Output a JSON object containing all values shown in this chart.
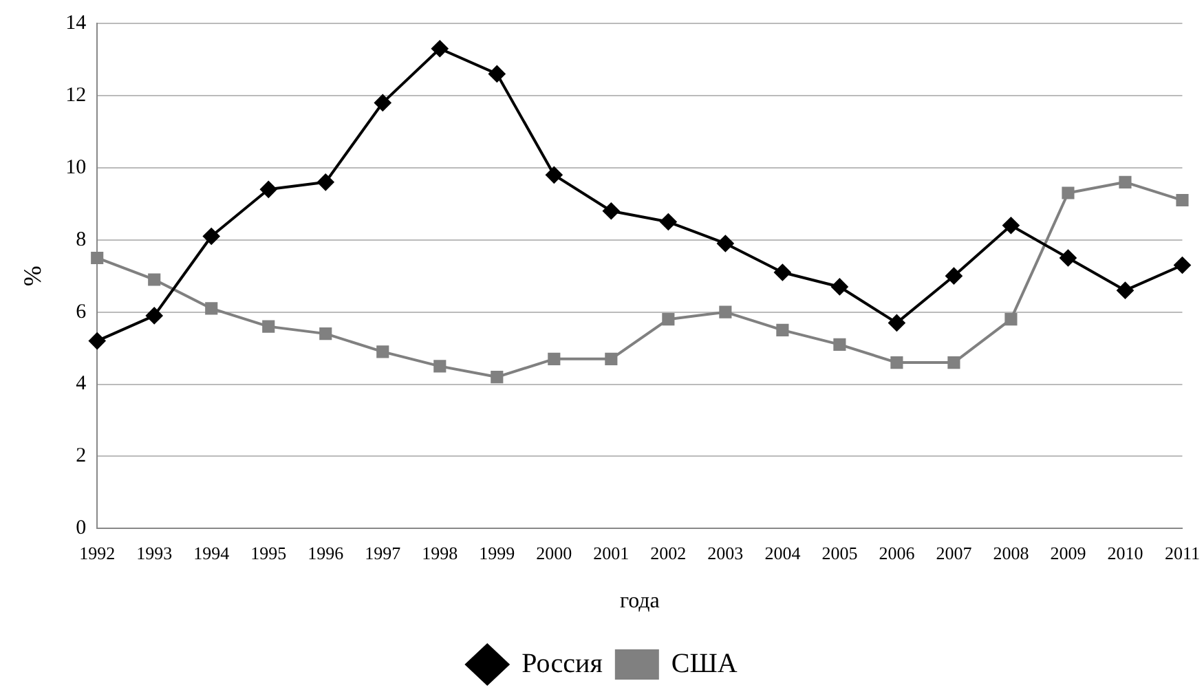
{
  "chart_data": {
    "type": "line",
    "xlabel": "года",
    "ylabel": "%",
    "categories": [
      "1992",
      "1993",
      "1994",
      "1995",
      "1996",
      "1997",
      "1998",
      "1999",
      "2000",
      "2001",
      "2002",
      "2003",
      "2004",
      "2005",
      "2006",
      "2007",
      "2008",
      "2009",
      "2010",
      "2011"
    ],
    "series": [
      {
        "name": "Россия",
        "color": "#000000",
        "marker": "diamond",
        "values": [
          5.2,
          5.9,
          8.1,
          9.4,
          9.6,
          11.8,
          13.3,
          12.6,
          9.8,
          8.8,
          8.5,
          7.9,
          7.1,
          6.7,
          5.7,
          7.0,
          8.4,
          7.5,
          6.6,
          7.3
        ]
      },
      {
        "name": "США",
        "color": "#808080",
        "marker": "square",
        "values": [
          7.5,
          6.9,
          6.1,
          5.6,
          5.4,
          4.9,
          4.5,
          4.2,
          4.7,
          4.7,
          5.8,
          6.0,
          5.5,
          5.1,
          4.6,
          4.6,
          5.8,
          9.3,
          9.6,
          9.1
        ]
      }
    ],
    "ylim": [
      0,
      14
    ],
    "yticks": [
      0,
      2,
      4,
      6,
      8,
      10,
      12,
      14
    ],
    "grid": "y",
    "legend": "bottom",
    "line_style": "solid"
  }
}
